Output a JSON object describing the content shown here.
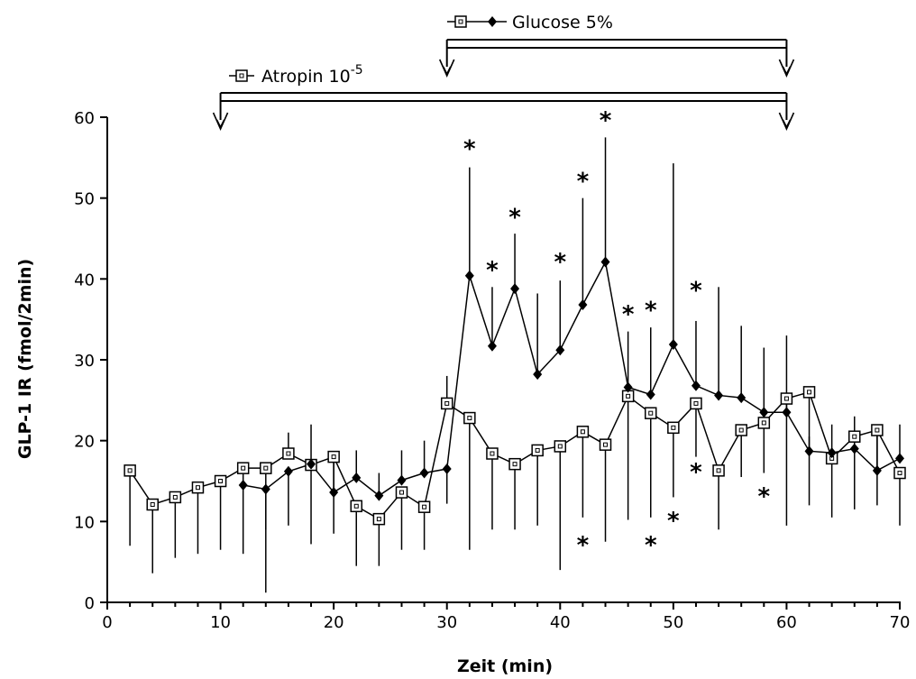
{
  "chart_data": {
    "type": "line",
    "xlabel": "Zeit (min)",
    "ylabel": "GLP-1 IR (fmol/2min)",
    "xlim": [
      0,
      70
    ],
    "ylim": [
      0,
      60
    ],
    "xticks": [
      0,
      10,
      20,
      30,
      40,
      50,
      60,
      70
    ],
    "yticks": [
      0,
      10,
      20,
      30,
      40,
      50,
      60
    ],
    "grid": false,
    "series": [
      {
        "name": "Atropin 10-5",
        "marker": "open-square",
        "points": [
          {
            "x": 2,
            "y": 16.3,
            "lo": 7.0
          },
          {
            "x": 4,
            "y": 12.1,
            "lo": 3.6
          },
          {
            "x": 6,
            "y": 13.0,
            "lo": 5.5
          },
          {
            "x": 8,
            "y": 14.2,
            "lo": 6.0
          },
          {
            "x": 10,
            "y": 15.0,
            "lo": 6.5
          },
          {
            "x": 12,
            "y": 16.6,
            "lo": 6.0
          },
          {
            "x": 14,
            "y": 16.6,
            "lo": 9.0
          },
          {
            "x": 16,
            "y": 18.4,
            "hi": 21.0
          },
          {
            "x": 18,
            "y": 17.0,
            "hi": 22.0
          },
          {
            "x": 20,
            "y": 18.0,
            "lo": 8.5
          },
          {
            "x": 22,
            "y": 11.9,
            "lo": 4.5
          },
          {
            "x": 24,
            "y": 10.3,
            "lo": 4.5
          },
          {
            "x": 26,
            "y": 13.6,
            "lo": 6.5
          },
          {
            "x": 28,
            "y": 11.8,
            "lo": 6.5
          },
          {
            "x": 30,
            "y": 24.6,
            "hi": 28.0
          },
          {
            "x": 32,
            "y": 22.8,
            "lo": 6.5
          },
          {
            "x": 34,
            "y": 18.4,
            "lo": 9.0
          },
          {
            "x": 36,
            "y": 17.1,
            "lo": 9.0
          },
          {
            "x": 38,
            "y": 18.8,
            "lo": 9.5
          },
          {
            "x": 40,
            "y": 19.3,
            "lo": 4.0
          },
          {
            "x": 42,
            "y": 21.1,
            "lo": 10.5
          },
          {
            "x": 44,
            "y": 19.5,
            "lo": 7.5
          },
          {
            "x": 46,
            "y": 25.5,
            "lo": 10.2
          },
          {
            "x": 48,
            "y": 23.4,
            "lo": 10.5
          },
          {
            "x": 50,
            "y": 21.6,
            "lo": 13.0
          },
          {
            "x": 52,
            "y": 24.6,
            "lo": 18.0
          },
          {
            "x": 54,
            "y": 16.3,
            "lo": 9.0
          },
          {
            "x": 56,
            "y": 21.3,
            "lo": 15.5
          },
          {
            "x": 58,
            "y": 22.2,
            "lo": 16.0
          },
          {
            "x": 60,
            "y": 25.2,
            "lo": 9.5
          },
          {
            "x": 62,
            "y": 26.0,
            "lo": 12.0
          },
          {
            "x": 64,
            "y": 17.8,
            "lo": 10.5
          },
          {
            "x": 66,
            "y": 20.5,
            "lo": 11.5
          },
          {
            "x": 68,
            "y": 21.3,
            "lo": 12.0
          },
          {
            "x": 70,
            "y": 16.0,
            "lo": 9.5
          }
        ]
      },
      {
        "name": "Glucose 5%",
        "marker": "filled-diamond",
        "points": [
          {
            "x": 12,
            "y": 14.5
          },
          {
            "x": 14,
            "y": 14.0,
            "lo": 1.2
          },
          {
            "x": 16,
            "y": 16.2,
            "lo": 9.5
          },
          {
            "x": 18,
            "y": 17.1,
            "lo": 7.2
          },
          {
            "x": 20,
            "y": 13.6,
            "hi": 17.5
          },
          {
            "x": 22,
            "y": 15.4,
            "hi": 18.8
          },
          {
            "x": 24,
            "y": 13.2,
            "hi": 16.0
          },
          {
            "x": 26,
            "y": 15.1,
            "hi": 18.8
          },
          {
            "x": 28,
            "y": 16.0,
            "hi": 20.0
          },
          {
            "x": 30,
            "y": 16.5,
            "lo": 12.2
          },
          {
            "x": 32,
            "y": 40.4,
            "hi": 53.8
          },
          {
            "x": 34,
            "y": 31.7,
            "hi": 39.0
          },
          {
            "x": 36,
            "y": 38.8,
            "hi": 45.6
          },
          {
            "x": 38,
            "y": 28.2,
            "hi": 38.2
          },
          {
            "x": 40,
            "y": 31.2,
            "hi": 39.8
          },
          {
            "x": 42,
            "y": 36.8,
            "hi": 50.0
          },
          {
            "x": 44,
            "y": 42.1,
            "hi": 57.5
          },
          {
            "x": 46,
            "y": 26.6,
            "hi": 33.5
          },
          {
            "x": 48,
            "y": 25.7,
            "hi": 34.0
          },
          {
            "x": 50,
            "y": 31.9,
            "hi": 54.3
          },
          {
            "x": 52,
            "y": 26.8,
            "hi": 34.8
          },
          {
            "x": 54,
            "y": 25.6,
            "hi": 39.0
          },
          {
            "x": 56,
            "y": 25.3,
            "hi": 34.2
          },
          {
            "x": 58,
            "y": 23.5,
            "hi": 31.5
          },
          {
            "x": 60,
            "y": 23.5,
            "hi": 33.0
          },
          {
            "x": 62,
            "y": 18.7,
            "hi": 20.5
          },
          {
            "x": 64,
            "y": 18.5,
            "hi": 22.0
          },
          {
            "x": 66,
            "y": 19.0,
            "hi": 23.0
          },
          {
            "x": 68,
            "y": 16.3,
            "hi": 21.0
          },
          {
            "x": 70,
            "y": 17.8,
            "hi": 22.0
          }
        ]
      }
    ],
    "significance_marks": [
      {
        "x": 32,
        "y": 56.5,
        "label": "*"
      },
      {
        "x": 34,
        "y": 41.5,
        "label": "*"
      },
      {
        "x": 36,
        "y": 48.0,
        "label": "*"
      },
      {
        "x": 40,
        "y": 42.5,
        "label": "*"
      },
      {
        "x": 42,
        "y": 52.5,
        "label": "*"
      },
      {
        "x": 44,
        "y": 60.0,
        "label": "*"
      },
      {
        "x": 46,
        "y": 36.0,
        "label": "*"
      },
      {
        "x": 48,
        "y": 36.5,
        "label": "*"
      },
      {
        "x": 52,
        "y": 39.0,
        "label": "*"
      },
      {
        "x": 42,
        "y": 7.5,
        "label": "*"
      },
      {
        "x": 48,
        "y": 7.5,
        "label": "*"
      },
      {
        "x": 50,
        "y": 10.5,
        "label": "*"
      },
      {
        "x": 52,
        "y": 16.5,
        "label": "*"
      },
      {
        "x": 58,
        "y": 13.5,
        "label": "*"
      }
    ],
    "treatment_bars": [
      {
        "label": "Glucose 5%",
        "label_sup": "",
        "from": 30,
        "to": 60,
        "level": "upper",
        "marker": "both"
      },
      {
        "label": "Atropin 10",
        "label_sup": "-5",
        "from": 10,
        "to": 60,
        "level": "lower",
        "marker": "open-square"
      }
    ]
  }
}
